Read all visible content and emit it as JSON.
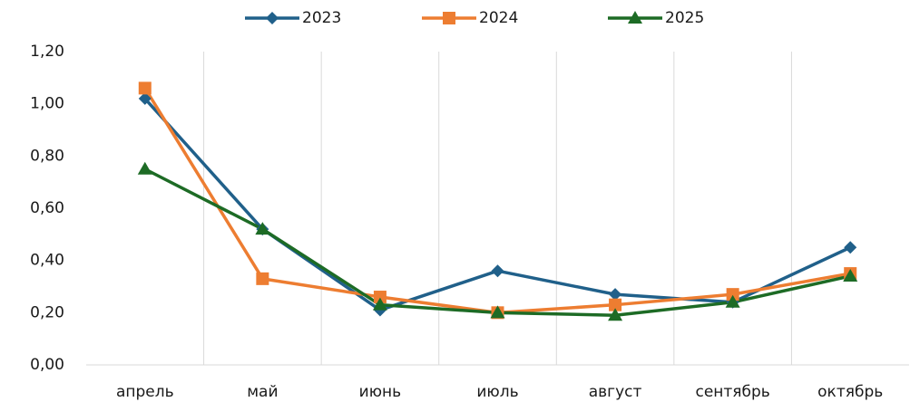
{
  "chart_data": {
    "type": "line",
    "categories": [
      "апрель",
      "май",
      "июнь",
      "июль",
      "август",
      "сентябрь",
      "октябрь"
    ],
    "series": [
      {
        "name": "2023",
        "color": "#20608a",
        "marker": "diamond",
        "values": [
          1.02,
          0.52,
          0.21,
          0.36,
          0.27,
          0.24,
          0.45
        ]
      },
      {
        "name": "2024",
        "color": "#ed7d31",
        "marker": "square",
        "values": [
          1.06,
          0.33,
          0.26,
          0.2,
          0.23,
          0.27,
          0.35
        ]
      },
      {
        "name": "2025",
        "color": "#1d6b25",
        "marker": "triangle",
        "values": [
          0.75,
          0.52,
          0.23,
          0.2,
          0.19,
          0.24,
          0.34
        ]
      }
    ],
    "ylim": [
      0,
      1.2
    ],
    "yticks": [
      {
        "value": 0,
        "label": "0,00"
      },
      {
        "value": 0.2,
        "label": "0,20"
      },
      {
        "value": 0.4,
        "label": "0,40"
      },
      {
        "value": 0.6,
        "label": "0,60"
      },
      {
        "value": 0.8,
        "label": "0,80"
      },
      {
        "value": 1.0,
        "label": "1,00"
      },
      {
        "value": 1.2,
        "label": "1,20"
      }
    ],
    "grid": "vertical",
    "legend": "top"
  }
}
